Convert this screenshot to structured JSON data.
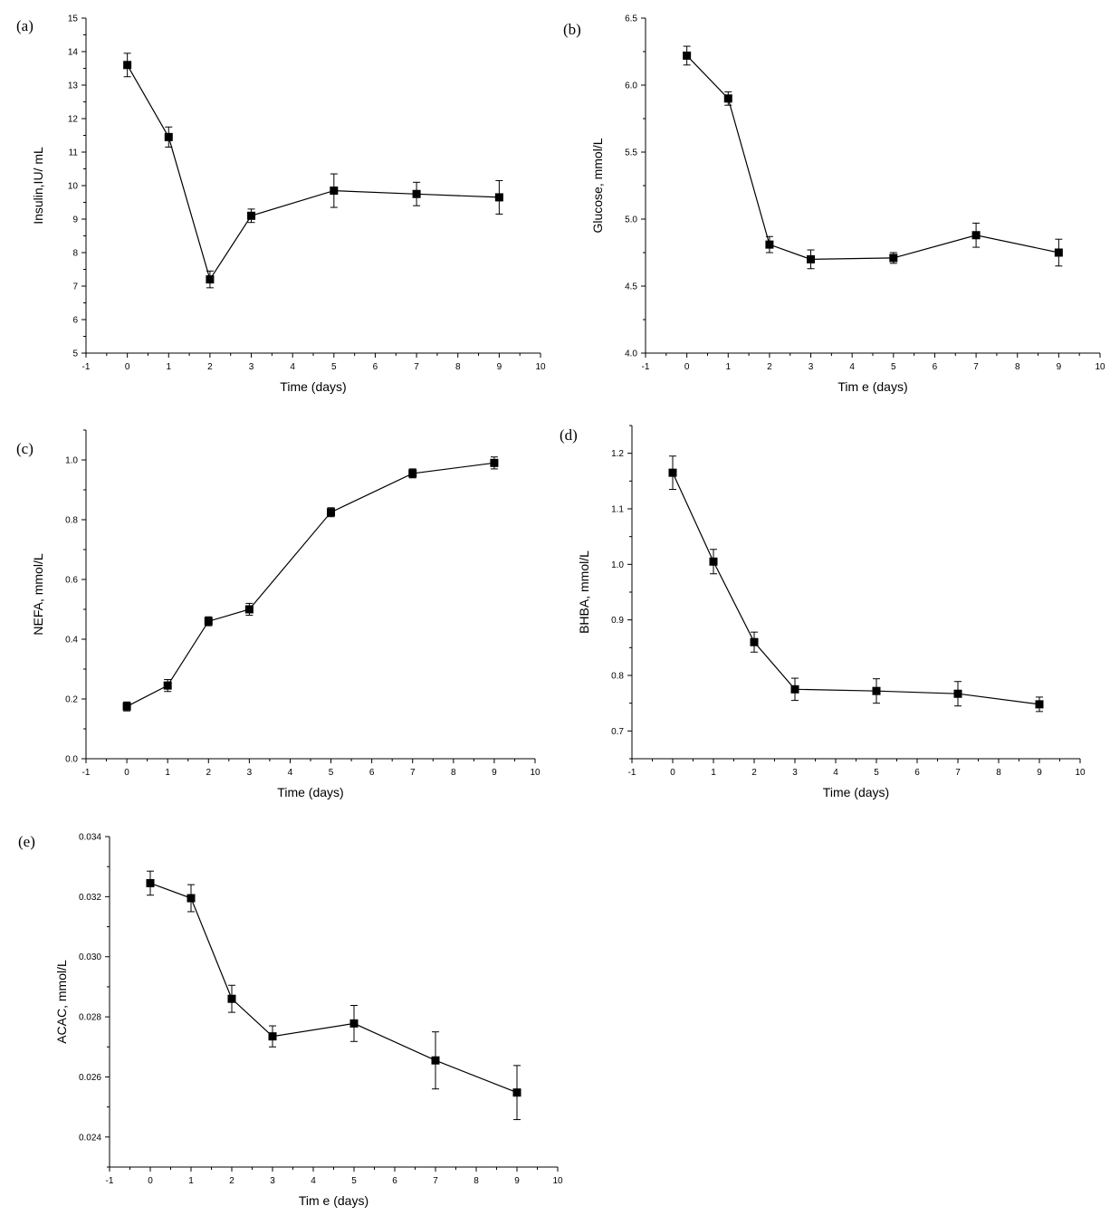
{
  "chart_data": [
    {
      "type": "line",
      "panel_label": "(a)",
      "xlabel": "Time (days)",
      "ylabel": "Insulin,IU/ mL",
      "xlim": [
        -1,
        10
      ],
      "ylim": [
        5,
        15
      ],
      "xticks": [
        "-1",
        "0",
        "1",
        "2",
        "3",
        "4",
        "5",
        "6",
        "7",
        "8",
        "9",
        "10"
      ],
      "yticks": [
        "5",
        "6",
        "7",
        "8",
        "9",
        "10",
        "11",
        "12",
        "13",
        "14",
        "15"
      ],
      "marker": "square",
      "grid": false,
      "series": [
        {
          "x": [
            0,
            1,
            2,
            3,
            5,
            7,
            9
          ],
          "y": [
            13.6,
            11.45,
            7.2,
            9.1,
            9.85,
            9.75,
            9.65
          ],
          "error": [
            0.35,
            0.3,
            0.25,
            0.2,
            0.5,
            0.35,
            0.5
          ]
        }
      ]
    },
    {
      "type": "line",
      "panel_label": "(b)",
      "xlabel": "Tim e (days)",
      "ylabel": "Glucose, mmol/L",
      "xlim": [
        -1,
        10
      ],
      "ylim": [
        4.0,
        6.5
      ],
      "xticks": [
        "-1",
        "0",
        "1",
        "2",
        "3",
        "4",
        "5",
        "6",
        "7",
        "8",
        "9",
        "10"
      ],
      "yticks": [
        "4.0",
        "4.5",
        "5.0",
        "5.5",
        "6.0",
        "6.5"
      ],
      "marker": "square",
      "grid": false,
      "series": [
        {
          "x": [
            0,
            1,
            2,
            3,
            5,
            7,
            9
          ],
          "y": [
            6.22,
            5.9,
            4.81,
            4.7,
            4.71,
            4.88,
            4.75
          ],
          "error": [
            0.07,
            0.05,
            0.06,
            0.07,
            0.04,
            0.09,
            0.1
          ]
        }
      ]
    },
    {
      "type": "line",
      "panel_label": "(c)",
      "xlabel": "Time (days)",
      "ylabel": "NEFA, mmol/L",
      "xlim": [
        -1,
        10
      ],
      "ylim": [
        0.0,
        1.1
      ],
      "xticks": [
        "-1",
        "0",
        "1",
        "2",
        "3",
        "4",
        "5",
        "6",
        "7",
        "8",
        "9",
        "10"
      ],
      "yticks": [
        "0.0",
        "0.2",
        "0.4",
        "0.6",
        "0.8",
        "1.0"
      ],
      "marker": "square",
      "grid": false,
      "series": [
        {
          "x": [
            0,
            1,
            2,
            3,
            5,
            7,
            9
          ],
          "y": [
            0.175,
            0.245,
            0.46,
            0.5,
            0.825,
            0.955,
            0.99
          ],
          "error": [
            0.015,
            0.02,
            0.015,
            0.02,
            0.015,
            0.015,
            0.02
          ]
        }
      ]
    },
    {
      "type": "line",
      "panel_label": "(d)",
      "xlabel": "Time (days)",
      "ylabel": "BHBA, mmol/L",
      "xlim": [
        -1,
        10
      ],
      "ylim": [
        0.65,
        1.25
      ],
      "xticks": [
        "-1",
        "0",
        "1",
        "2",
        "3",
        "4",
        "5",
        "6",
        "7",
        "8",
        "9",
        "10"
      ],
      "yticks": [
        "0.7",
        "0.8",
        "0.9",
        "1.0",
        "1.1",
        "1.2"
      ],
      "marker": "square",
      "grid": false,
      "series": [
        {
          "x": [
            0,
            1,
            2,
            3,
            5,
            7,
            9
          ],
          "y": [
            1.165,
            1.005,
            0.86,
            0.775,
            0.772,
            0.767,
            0.748
          ],
          "error": [
            0.03,
            0.022,
            0.018,
            0.02,
            0.022,
            0.022,
            0.013
          ]
        }
      ]
    },
    {
      "type": "line",
      "panel_label": "(e)",
      "xlabel": "Tim e (days)",
      "ylabel": "ACAC, mmol/L",
      "xlim": [
        -1,
        10
      ],
      "ylim": [
        0.023,
        0.034
      ],
      "xticks": [
        "-1",
        "0",
        "1",
        "2",
        "3",
        "4",
        "5",
        "6",
        "7",
        "8",
        "9",
        "10"
      ],
      "yticks": [
        "0.024",
        "0.026",
        "0.028",
        "0.030",
        "0.032",
        "0.034"
      ],
      "marker": "square",
      "grid": false,
      "series": [
        {
          "x": [
            0,
            1,
            2,
            3,
            5,
            7,
            9
          ],
          "y": [
            0.03245,
            0.03195,
            0.0286,
            0.02735,
            0.02778,
            0.02655,
            0.02548
          ],
          "error": [
            0.0004,
            0.00045,
            0.00045,
            0.00035,
            0.0006,
            0.00095,
            0.0009
          ]
        }
      ]
    }
  ]
}
